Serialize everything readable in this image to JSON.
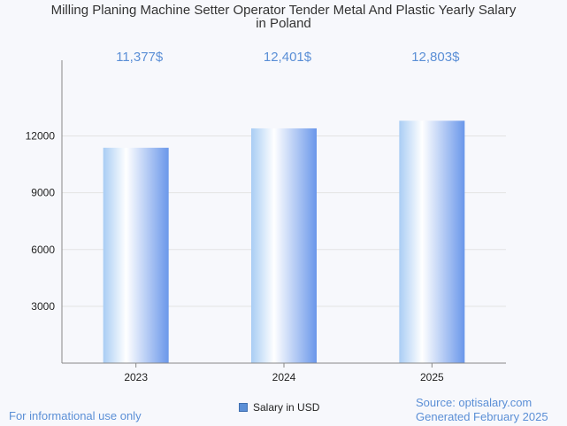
{
  "chart_data": {
    "type": "bar",
    "title_lines": [
      "Milling Planing Machine Setter Operator Tender Metal And Plastic Yearly Salary",
      "in Poland"
    ],
    "categories": [
      "2023",
      "2024",
      "2025"
    ],
    "series": [
      {
        "name": "Salary in USD",
        "values": [
          11377,
          12401,
          12803
        ],
        "labels": [
          "11,377$",
          "12,401$",
          "12,803$"
        ]
      }
    ],
    "y_ticks": [
      3000,
      6000,
      9000,
      12000
    ],
    "ylim": [
      0,
      16000
    ],
    "grid": true,
    "legend": "bottom-center",
    "colors": {
      "bar_edge": "#5b8fd6",
      "bar_center": "#ffffff",
      "value_label": "#5b8fd6",
      "grid": "#e3e3e3",
      "axis": "#888888"
    }
  },
  "footer": {
    "left": "For informational use only",
    "source": "Source: optisalary.com",
    "generated": "Generated February 2025"
  }
}
